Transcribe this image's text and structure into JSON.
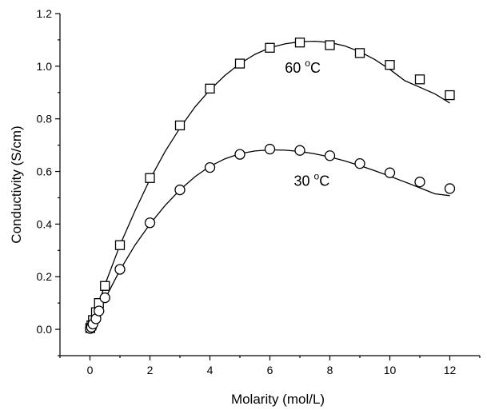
{
  "chart_data": {
    "type": "scatter",
    "xlabel": "Molarity (mol/L)",
    "ylabel": "Conductivity (S/cm)",
    "xlim": [
      -1,
      13
    ],
    "ylim": [
      -0.1,
      1.2
    ],
    "x_ticks": [
      0,
      2,
      4,
      6,
      8,
      10,
      12
    ],
    "y_ticks": [
      0.0,
      0.2,
      0.4,
      0.6,
      0.8,
      1.0,
      1.2
    ],
    "x_tick_labels": [
      "0",
      "2",
      "4",
      "6",
      "8",
      "10",
      "12"
    ],
    "y_tick_labels": [
      "0.0",
      "0.2",
      "0.4",
      "0.6",
      "0.8",
      "1.0",
      "1.2"
    ],
    "grid": false,
    "series": [
      {
        "marker": "square",
        "color": "#000000",
        "x": [
          0.01,
          0.05,
          0.1,
          0.2,
          0.3,
          0.5,
          1,
          2,
          3,
          4,
          5,
          6,
          7,
          8,
          9,
          10,
          11,
          12
        ],
        "y": [
          0.005,
          0.015,
          0.035,
          0.065,
          0.1,
          0.165,
          0.32,
          0.575,
          0.775,
          0.915,
          1.01,
          1.07,
          1.09,
          1.08,
          1.05,
          1.005,
          0.95,
          0.89
        ],
        "fit": {
          "x": [
            0,
            0.5,
            1,
            1.5,
            2,
            2.5,
            3,
            3.5,
            4,
            4.5,
            5,
            5.5,
            6,
            6.5,
            7,
            7.5,
            8,
            8.5,
            9,
            9.5,
            10,
            10.5,
            11,
            11.5,
            12
          ],
          "y": [
            0.0,
            0.17,
            0.32,
            0.45,
            0.57,
            0.675,
            0.765,
            0.845,
            0.91,
            0.965,
            1.01,
            1.045,
            1.07,
            1.085,
            1.093,
            1.095,
            1.09,
            1.077,
            1.055,
            1.025,
            0.988,
            0.945,
            0.92,
            0.895,
            0.86
          ]
        }
      },
      {
        "marker": "circle",
        "color": "#000000",
        "x": [
          0.01,
          0.05,
          0.1,
          0.2,
          0.3,
          0.5,
          1,
          2,
          3,
          4,
          5,
          6,
          7,
          8,
          9,
          10,
          11,
          12
        ],
        "y": [
          0.003,
          0.008,
          0.02,
          0.04,
          0.07,
          0.12,
          0.228,
          0.405,
          0.53,
          0.615,
          0.665,
          0.685,
          0.68,
          0.66,
          0.63,
          0.595,
          0.56,
          0.535
        ],
        "fit": {
          "x": [
            0,
            0.5,
            1,
            1.5,
            2,
            2.5,
            3,
            3.5,
            4,
            4.5,
            5,
            5.5,
            6,
            6.5,
            7,
            7.5,
            8,
            8.5,
            9,
            9.5,
            10,
            10.5,
            11,
            11.5,
            12
          ],
          "y": [
            0.0,
            0.115,
            0.225,
            0.32,
            0.4,
            0.47,
            0.53,
            0.58,
            0.62,
            0.648,
            0.668,
            0.678,
            0.682,
            0.681,
            0.676,
            0.667,
            0.655,
            0.64,
            0.622,
            0.603,
            0.582,
            0.56,
            0.538,
            0.515,
            0.508
          ]
        }
      }
    ],
    "annotations": [
      {
        "base": "60 ",
        "sup": "o",
        "tail": "C",
        "x": 6.5,
        "y": 0.975
      },
      {
        "base": "30 ",
        "sup": "o",
        "tail": "C",
        "x": 6.8,
        "y": 0.545
      }
    ]
  }
}
